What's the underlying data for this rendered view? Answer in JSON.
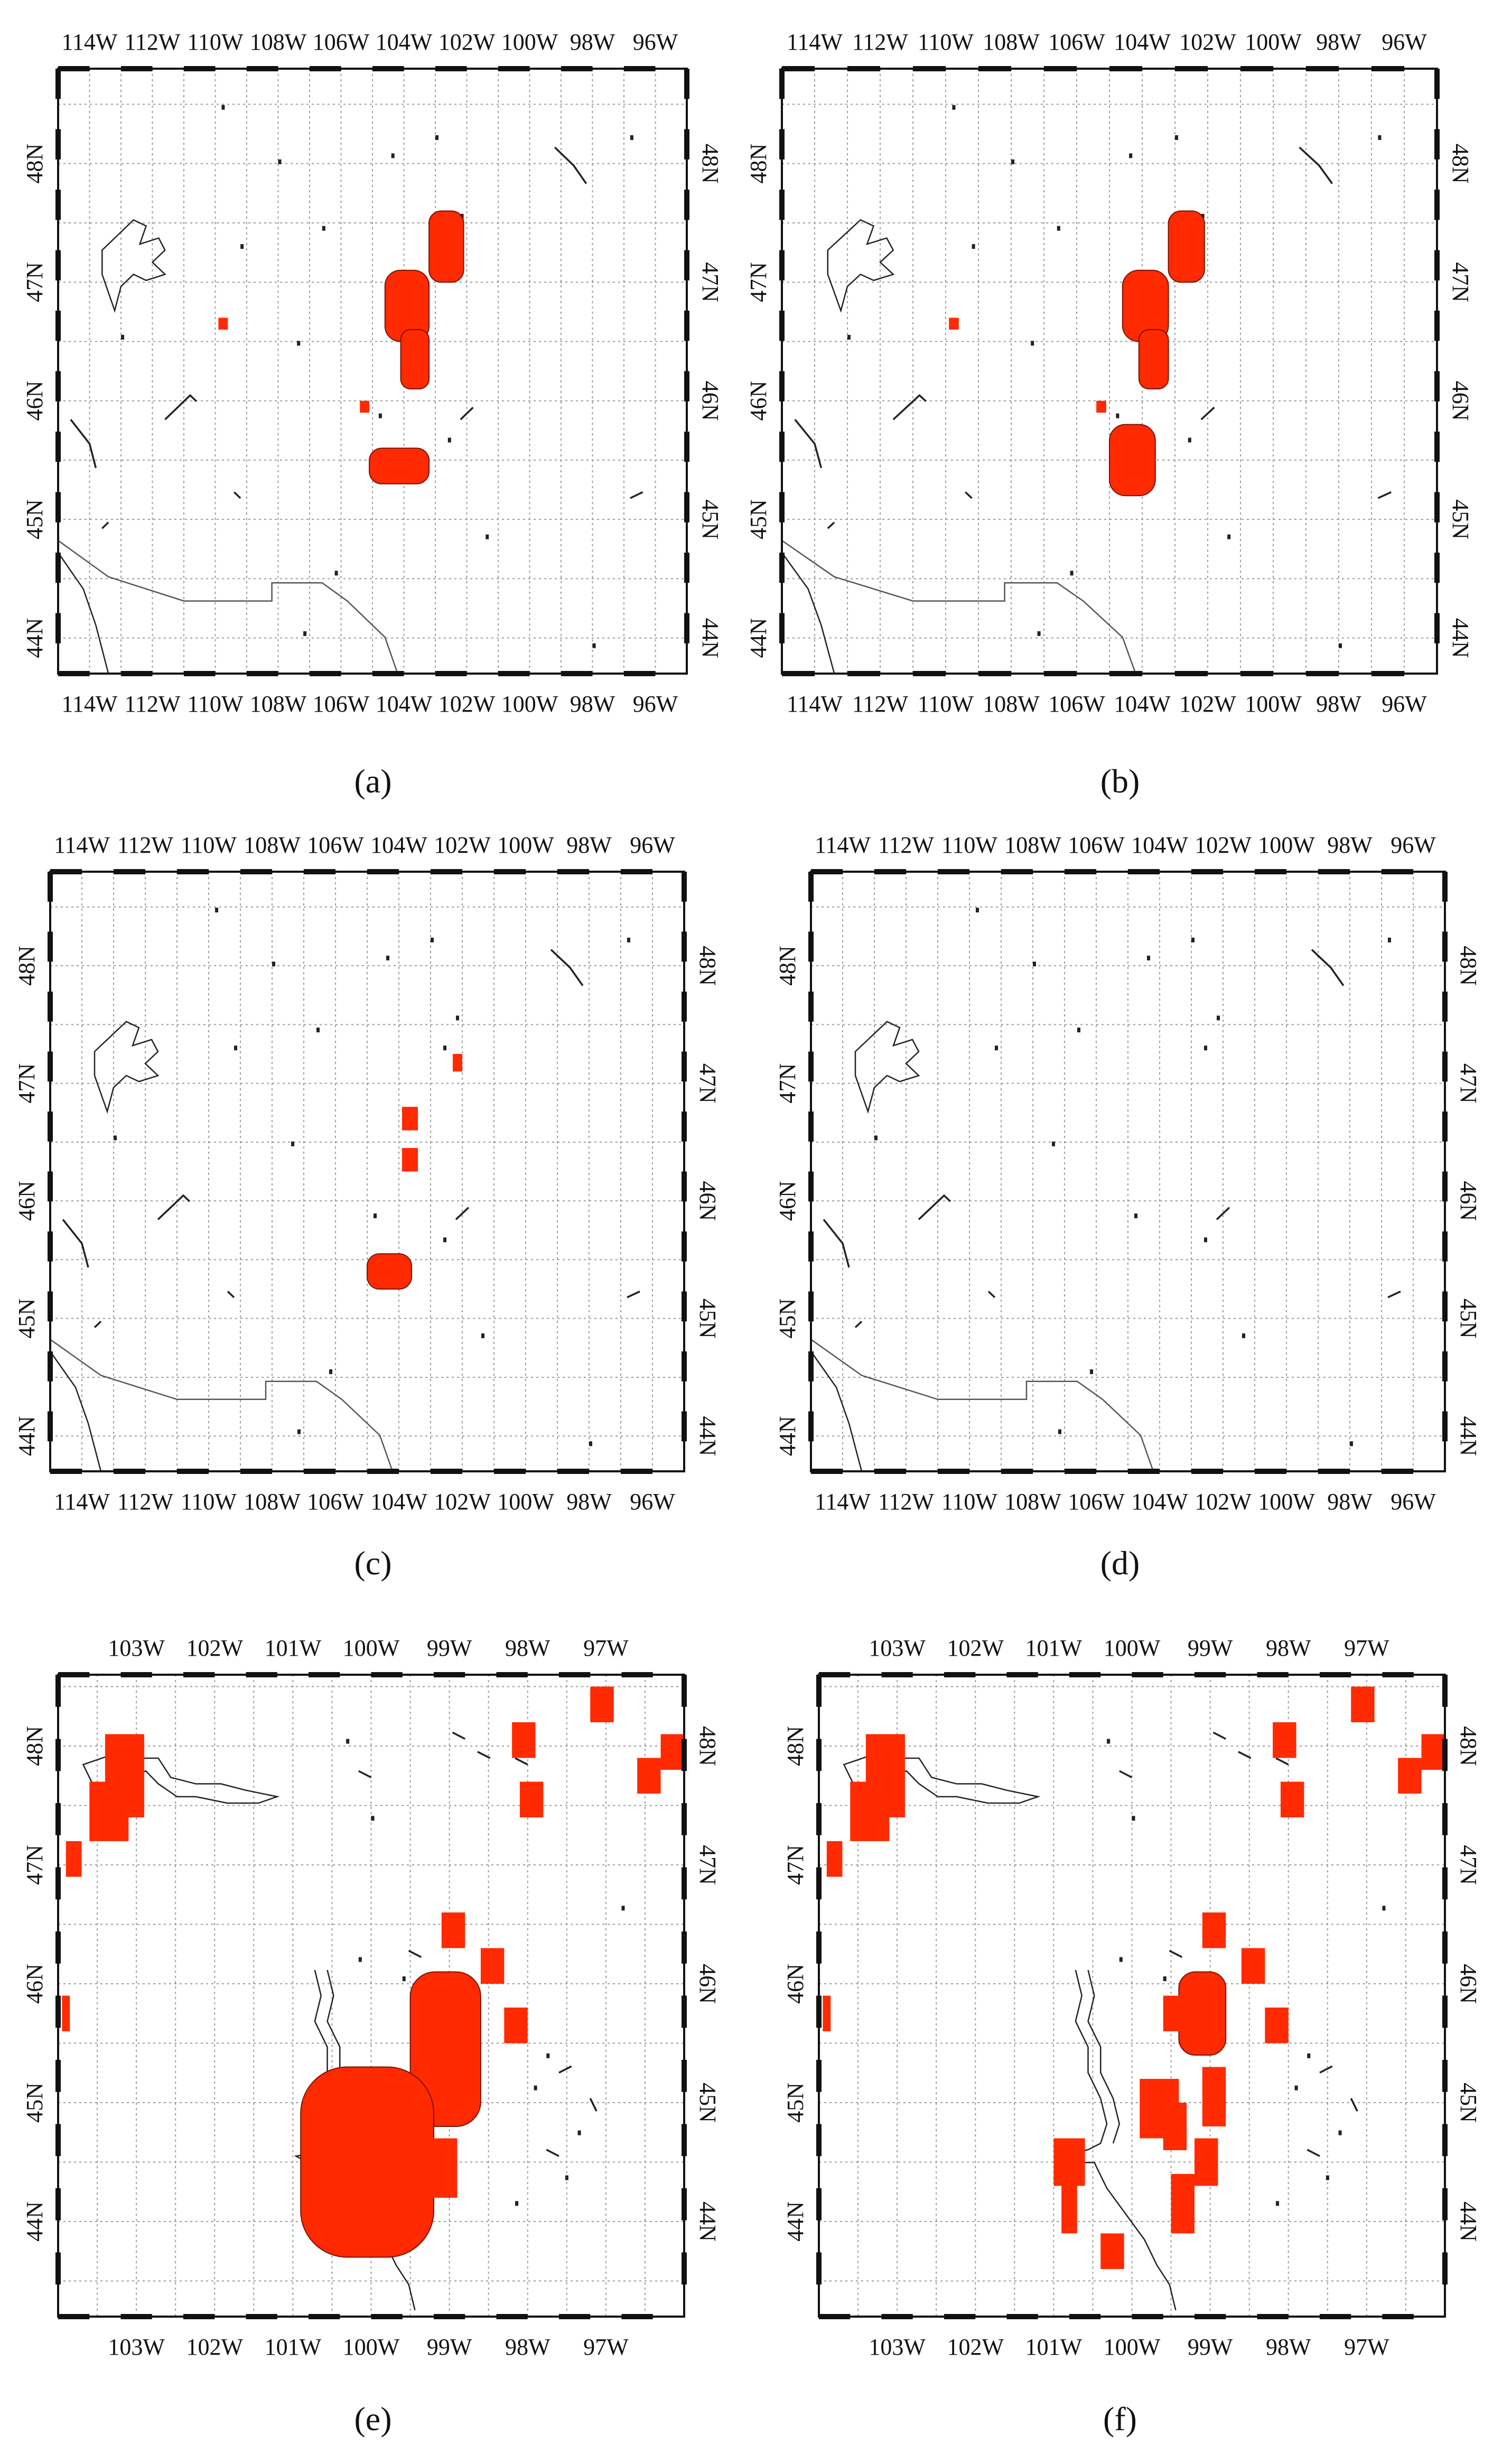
{
  "figure": {
    "panel_count": 6,
    "colors": {
      "frame": "#111111",
      "grid": "#9a9a9a",
      "coastline": "#222222",
      "border": "#555555",
      "highlight": "#ff2a00",
      "background": "#ffffff"
    }
  },
  "panels": [
    {
      "id": "a",
      "caption": "(a)",
      "lon_labels": [
        "114W",
        "112W",
        "110W",
        "108W",
        "106W",
        "104W",
        "102W",
        "100W",
        "98W",
        "96W"
      ],
      "lat_labels": [
        "48N",
        "47N",
        "46N",
        "45N",
        "44N"
      ],
      "lon_range": [
        -115,
        -95
      ],
      "lat_range": [
        43.7,
        48.8
      ],
      "highlight_regions": [
        {
          "lon": [
            -103.2,
            -102.1
          ],
          "lat": [
            47.0,
            47.6
          ],
          "shape": "blob"
        },
        {
          "lon": [
            -104.6,
            -103.2
          ],
          "lat": [
            46.5,
            47.1
          ],
          "shape": "blob"
        },
        {
          "lon": [
            -104.1,
            -103.2
          ],
          "lat": [
            46.1,
            46.6
          ],
          "shape": "blob"
        },
        {
          "lon": [
            -109.9,
            -109.6
          ],
          "lat": [
            46.6,
            46.7
          ],
          "shape": "square"
        },
        {
          "lon": [
            -105.4,
            -105.1
          ],
          "lat": [
            45.9,
            46.0
          ],
          "shape": "square"
        },
        {
          "lon": [
            -105.1,
            -103.2
          ],
          "lat": [
            45.3,
            45.6
          ],
          "shape": "blob"
        }
      ]
    },
    {
      "id": "b",
      "caption": "(b)",
      "lon_labels": [
        "114W",
        "112W",
        "110W",
        "108W",
        "106W",
        "104W",
        "102W",
        "100W",
        "98W",
        "96W"
      ],
      "lat_labels": [
        "48N",
        "47N",
        "46N",
        "45N",
        "44N"
      ],
      "lon_range": [
        -115,
        -95
      ],
      "lat_range": [
        43.7,
        48.8
      ],
      "highlight_regions": [
        {
          "lon": [
            -103.2,
            -102.1
          ],
          "lat": [
            47.0,
            47.6
          ],
          "shape": "blob"
        },
        {
          "lon": [
            -104.6,
            -103.2
          ],
          "lat": [
            46.5,
            47.1
          ],
          "shape": "blob"
        },
        {
          "lon": [
            -104.1,
            -103.2
          ],
          "lat": [
            46.1,
            46.6
          ],
          "shape": "blob"
        },
        {
          "lon": [
            -109.9,
            -109.6
          ],
          "lat": [
            46.6,
            46.7
          ],
          "shape": "square"
        },
        {
          "lon": [
            -105.4,
            -105.1
          ],
          "lat": [
            45.9,
            46.0
          ],
          "shape": "square"
        },
        {
          "lon": [
            -105.0,
            -103.6
          ],
          "lat": [
            45.2,
            45.8
          ],
          "shape": "blob"
        }
      ]
    },
    {
      "id": "c",
      "caption": "(c)",
      "lon_labels": [
        "114W",
        "112W",
        "110W",
        "108W",
        "106W",
        "104W",
        "102W",
        "100W",
        "98W",
        "96W"
      ],
      "lat_labels": [
        "48N",
        "47N",
        "46N",
        "45N",
        "44N"
      ],
      "lon_range": [
        -115,
        -95
      ],
      "lat_range": [
        43.7,
        48.8
      ],
      "highlight_regions": [
        {
          "lon": [
            -102.3,
            -102.0
          ],
          "lat": [
            47.1,
            47.25
          ],
          "shape": "square"
        },
        {
          "lon": [
            -103.9,
            -103.4
          ],
          "lat": [
            46.6,
            46.8
          ],
          "shape": "square"
        },
        {
          "lon": [
            -103.9,
            -103.4
          ],
          "lat": [
            46.25,
            46.45
          ],
          "shape": "square"
        },
        {
          "lon": [
            -105.0,
            -103.6
          ],
          "lat": [
            45.25,
            45.55
          ],
          "shape": "blob"
        }
      ]
    },
    {
      "id": "d",
      "caption": "(d)",
      "lon_labels": [
        "114W",
        "112W",
        "110W",
        "108W",
        "106W",
        "104W",
        "102W",
        "100W",
        "98W",
        "96W"
      ],
      "lat_labels": [
        "48N",
        "47N",
        "46N",
        "45N",
        "44N"
      ],
      "lon_range": [
        -115,
        -95
      ],
      "lat_range": [
        43.7,
        48.8
      ],
      "highlight_regions": []
    },
    {
      "id": "e",
      "caption": "(e)",
      "lon_labels": [
        "103W",
        "102W",
        "101W",
        "100W",
        "99W",
        "98W",
        "97W"
      ],
      "lat_labels": [
        "48N",
        "47N",
        "46N",
        "45N",
        "44N"
      ],
      "lon_range": [
        -104.0,
        -96.0
      ],
      "lat_range": [
        43.2,
        48.6
      ],
      "highlight_regions": [
        {
          "lon": [
            -103.4,
            -102.9
          ],
          "lat": [
            47.4,
            48.1
          ],
          "shape": "rect"
        },
        {
          "lon": [
            -103.6,
            -103.1
          ],
          "lat": [
            47.2,
            47.7
          ],
          "shape": "rect"
        },
        {
          "lon": [
            -103.9,
            -103.7
          ],
          "lat": [
            46.9,
            47.2
          ],
          "shape": "rect"
        },
        {
          "lon": [
            -103.95,
            -103.85
          ],
          "lat": [
            45.6,
            45.9
          ],
          "shape": "rect"
        },
        {
          "lon": [
            -98.2,
            -97.9
          ],
          "lat": [
            47.9,
            48.2
          ],
          "shape": "rect"
        },
        {
          "lon": [
            -98.1,
            -97.8
          ],
          "lat": [
            47.4,
            47.7
          ],
          "shape": "rect"
        },
        {
          "lon": [
            -97.2,
            -96.9
          ],
          "lat": [
            48.2,
            48.5
          ],
          "shape": "rect"
        },
        {
          "lon": [
            -96.6,
            -96.3
          ],
          "lat": [
            47.6,
            47.9
          ],
          "shape": "rect"
        },
        {
          "lon": [
            -96.3,
            -96.0
          ],
          "lat": [
            47.8,
            48.1
          ],
          "shape": "rect"
        },
        {
          "lon": [
            -99.1,
            -98.8
          ],
          "lat": [
            46.3,
            46.6
          ],
          "shape": "rect"
        },
        {
          "lon": [
            -98.6,
            -98.3
          ],
          "lat": [
            46.0,
            46.3
          ],
          "shape": "rect"
        },
        {
          "lon": [
            -98.3,
            -98.0
          ],
          "lat": [
            45.5,
            45.8
          ],
          "shape": "rect"
        },
        {
          "lon": [
            -99.5,
            -98.6
          ],
          "lat": [
            44.8,
            46.1
          ],
          "shape": "blob"
        },
        {
          "lon": [
            -100.9,
            -99.2
          ],
          "lat": [
            43.7,
            45.3
          ],
          "shape": "blob"
        },
        {
          "lon": [
            -99.3,
            -98.9
          ],
          "lat": [
            44.2,
            44.7
          ],
          "shape": "rect"
        }
      ]
    },
    {
      "id": "f",
      "caption": "(f)",
      "lon_labels": [
        "103W",
        "102W",
        "101W",
        "100W",
        "99W",
        "98W",
        "97W"
      ],
      "lat_labels": [
        "48N",
        "47N",
        "46N",
        "45N",
        "44N"
      ],
      "lon_range": [
        -104.0,
        -96.0
      ],
      "lat_range": [
        43.2,
        48.6
      ],
      "highlight_regions": [
        {
          "lon": [
            -103.4,
            -102.9
          ],
          "lat": [
            47.4,
            48.1
          ],
          "shape": "rect"
        },
        {
          "lon": [
            -103.6,
            -103.1
          ],
          "lat": [
            47.2,
            47.7
          ],
          "shape": "rect"
        },
        {
          "lon": [
            -103.9,
            -103.7
          ],
          "lat": [
            46.9,
            47.2
          ],
          "shape": "rect"
        },
        {
          "lon": [
            -103.95,
            -103.85
          ],
          "lat": [
            45.6,
            45.9
          ],
          "shape": "rect"
        },
        {
          "lon": [
            -98.2,
            -97.9
          ],
          "lat": [
            47.9,
            48.2
          ],
          "shape": "rect"
        },
        {
          "lon": [
            -98.1,
            -97.8
          ],
          "lat": [
            47.4,
            47.7
          ],
          "shape": "rect"
        },
        {
          "lon": [
            -97.2,
            -96.9
          ],
          "lat": [
            48.2,
            48.5
          ],
          "shape": "rect"
        },
        {
          "lon": [
            -96.6,
            -96.3
          ],
          "lat": [
            47.6,
            47.9
          ],
          "shape": "rect"
        },
        {
          "lon": [
            -96.3,
            -96.0
          ],
          "lat": [
            47.8,
            48.1
          ],
          "shape": "rect"
        },
        {
          "lon": [
            -99.1,
            -98.8
          ],
          "lat": [
            46.3,
            46.6
          ],
          "shape": "rect"
        },
        {
          "lon": [
            -98.6,
            -98.3
          ],
          "lat": [
            46.0,
            46.3
          ],
          "shape": "rect"
        },
        {
          "lon": [
            -98.3,
            -98.0
          ],
          "lat": [
            45.5,
            45.8
          ],
          "shape": "rect"
        },
        {
          "lon": [
            -99.4,
            -98.8
          ],
          "lat": [
            45.4,
            46.1
          ],
          "shape": "blob"
        },
        {
          "lon": [
            -99.6,
            -99.1
          ],
          "lat": [
            45.6,
            45.9
          ],
          "shape": "rect"
        },
        {
          "lon": [
            -99.1,
            -98.8
          ],
          "lat": [
            44.8,
            45.3
          ],
          "shape": "rect"
        },
        {
          "lon": [
            -99.9,
            -99.4
          ],
          "lat": [
            44.7,
            45.2
          ],
          "shape": "rect"
        },
        {
          "lon": [
            -99.6,
            -99.3
          ],
          "lat": [
            44.6,
            45.0
          ],
          "shape": "rect"
        },
        {
          "lon": [
            -99.2,
            -98.9
          ],
          "lat": [
            44.3,
            44.7
          ],
          "shape": "rect"
        },
        {
          "lon": [
            -99.5,
            -99.2
          ],
          "lat": [
            43.9,
            44.4
          ],
          "shape": "rect"
        },
        {
          "lon": [
            -101.0,
            -100.6
          ],
          "lat": [
            44.3,
            44.7
          ],
          "shape": "rect"
        },
        {
          "lon": [
            -100.9,
            -100.7
          ],
          "lat": [
            43.9,
            44.3
          ],
          "shape": "rect"
        },
        {
          "lon": [
            -100.4,
            -100.1
          ],
          "lat": [
            43.6,
            43.9
          ],
          "shape": "rect"
        }
      ]
    }
  ]
}
